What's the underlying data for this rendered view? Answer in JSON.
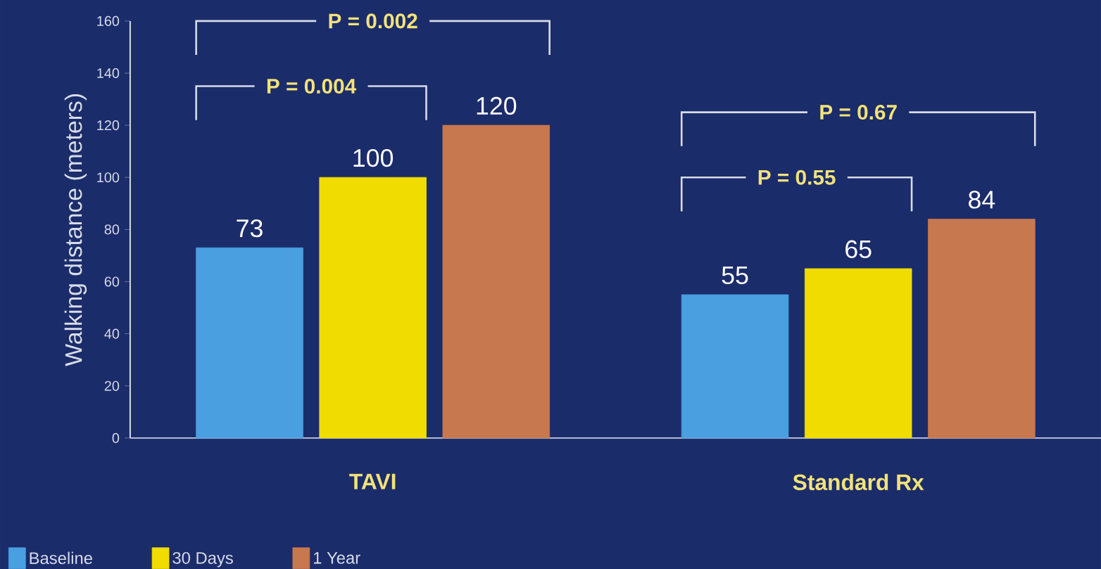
{
  "chart_data": {
    "type": "bar",
    "ylabel": "Walking distance (meters)",
    "categories": [
      "TAVI",
      "Standard Rx"
    ],
    "series": [
      {
        "name": "Baseline",
        "color": "#4a9fe0",
        "values": [
          73,
          55
        ]
      },
      {
        "name": "30 Days",
        "color": "#f0dc00",
        "values": [
          100,
          65
        ]
      },
      {
        "name": "1 Year",
        "color": "#c8784e",
        "values": [
          120,
          84
        ]
      }
    ],
    "ylim": [
      0,
      160
    ],
    "yticks": [
      0,
      20,
      40,
      60,
      80,
      100,
      120,
      140,
      160
    ],
    "data_labels": true,
    "grid": false,
    "legend": "bottom left",
    "annotations": [
      "P = 0.002",
      "P = 0.004",
      "P = 0.67",
      "P = 0.55"
    ]
  }
}
